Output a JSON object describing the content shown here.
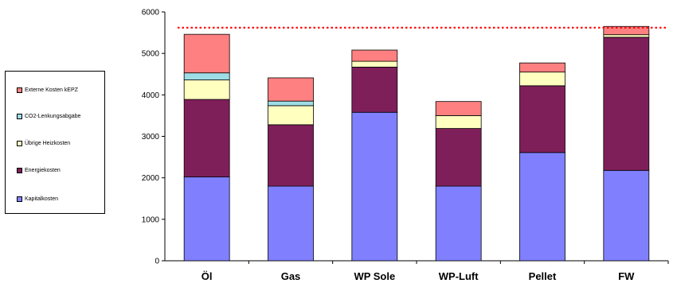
{
  "chart_data": {
    "type": "bar",
    "stacked": true,
    "categories": [
      "Öl",
      "Gas",
      "WP Sole",
      "WP-Luft",
      "Pellet",
      "FW"
    ],
    "series": [
      {
        "name": "Kapitalkosten",
        "color": "#8080ff",
        "values": [
          2020,
          1800,
          3580,
          1800,
          2610,
          2180
        ]
      },
      {
        "name": "Energiekosten",
        "color": "#7f1f5a",
        "values": [
          1870,
          1480,
          1090,
          1390,
          1610,
          3210
        ]
      },
      {
        "name": "Übrige Heizkosten",
        "color": "#ffffc0",
        "values": [
          470,
          460,
          140,
          310,
          330,
          60
        ]
      },
      {
        "name": "CO2-Lenkungsabgabe",
        "color": "#9fdde6",
        "values": [
          170,
          110,
          0,
          0,
          0,
          0
        ]
      },
      {
        "name": "Externe Kosten kEPZ",
        "color": "#ff8080",
        "values": [
          930,
          560,
          270,
          340,
          220,
          200
        ]
      }
    ],
    "reference_line": {
      "value": 5620,
      "color": "#ff0000",
      "style": "dotted"
    },
    "ylim": [
      0,
      6000
    ],
    "yticks": [
      0,
      1000,
      2000,
      3000,
      4000,
      5000,
      6000
    ],
    "legend_position": "left",
    "legend_order": [
      "Externe Kosten kEPZ",
      "CO2-Lenkungsabgabe",
      "Übrige Heizkosten",
      "Energiekosten",
      "Kapitalkosten"
    ],
    "grid": false
  }
}
